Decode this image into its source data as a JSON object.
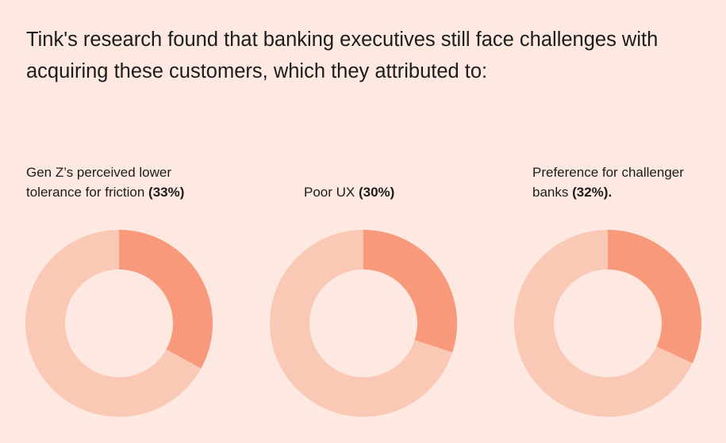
{
  "title": "Tink's research found that banking executives still face challenges with acquiring these customers, which they attributed to:",
  "chart_data": [
    {
      "type": "pie",
      "categories": [
        "Gen Z’s perceived lower tolerance for friction"
      ],
      "values": [
        33
      ],
      "value_labels": [
        "(33%)"
      ],
      "color": "#f7997a",
      "track_color": "#f9c9b5"
    },
    {
      "type": "pie",
      "categories": [
        "Poor UX"
      ],
      "values": [
        30
      ],
      "value_labels": [
        "(30%)"
      ],
      "color": "#f7997a",
      "track_color": "#f9c9b5"
    },
    {
      "type": "pie",
      "categories": [
        "Preference for challenger banks"
      ],
      "values": [
        32
      ],
      "value_labels": [
        "(32%)."
      ],
      "color": "#f7997a",
      "track_color": "#f9c9b5"
    }
  ]
}
